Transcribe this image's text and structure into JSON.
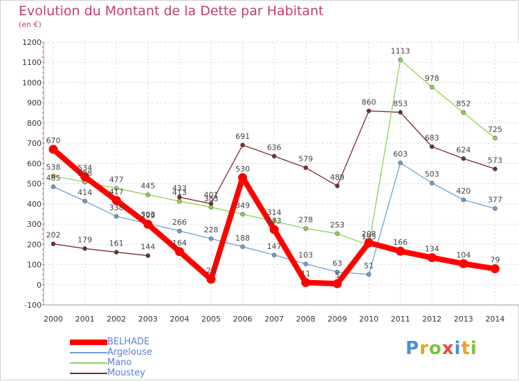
{
  "title": "Evolution du Montant de la Dette par Habitant",
  "unit": "(en €)",
  "logo": {
    "text": "Proxiti",
    "colors": [
      "#4a8fd6",
      "#f0a020",
      "#7cc242",
      "#e84a3a",
      "#4a8fd6",
      "#f0a020",
      "#7cc242"
    ]
  },
  "chart_data": {
    "type": "line",
    "x": [
      "2000",
      "2001",
      "2002",
      "2003",
      "2004",
      "2005",
      "2006",
      "2007",
      "2008",
      "2009",
      "2010",
      "2011",
      "2012",
      "2013",
      "2014"
    ],
    "ylim": [
      -100,
      1200
    ],
    "yticks": [
      -100,
      0,
      100,
      200,
      300,
      400,
      500,
      600,
      700,
      800,
      900,
      1000,
      1100,
      1200
    ],
    "grid": true,
    "legend_position": "bottom-left",
    "series": [
      {
        "name": "BELHADE",
        "color": "#ff0000",
        "values": [
          670,
          534,
          417,
          299,
          164,
          27,
          530,
          273,
          11,
          5,
          208,
          166,
          134,
          104,
          79
        ],
        "labels": [
          "670",
          "534",
          "417",
          "299",
          "164",
          "27",
          "530",
          "273",
          "11",
          "5",
          "208",
          "166",
          "134",
          "104",
          "79"
        ]
      },
      {
        "name": "Argelouse",
        "color": "#6fa0d0",
        "values": [
          485,
          414,
          338,
          303,
          266,
          228,
          188,
          147,
          103,
          63,
          51,
          603,
          503,
          420,
          377
        ],
        "labels": [
          "485",
          "414",
          "338",
          "303",
          "266",
          "228",
          "188",
          "147",
          "103",
          "63",
          "51",
          "603",
          "503",
          "420",
          "377"
        ]
      },
      {
        "name": "Mano",
        "color": "#8ed14f",
        "values": [
          538,
          508,
          477,
          445,
          413,
          383,
          349,
          314,
          278,
          253,
          195,
          1113,
          978,
          852,
          725
        ],
        "labels": [
          "538",
          "508",
          "477",
          "445",
          "413",
          "383",
          "349",
          "314",
          "278",
          "253",
          "195",
          "1113",
          "978",
          "852",
          "725"
        ]
      },
      {
        "name": "Moustey",
        "color": "#7a2a2a",
        "values": [
          202,
          179,
          161,
          144,
          433,
          401,
          691,
          636,
          579,
          489,
          860,
          853,
          683,
          624,
          573
        ],
        "labels": [
          "202",
          "179",
          "161",
          "144",
          "433",
          "401",
          "691",
          "636",
          "579",
          "489",
          "860",
          "853",
          "683",
          "624",
          "573"
        ]
      }
    ]
  }
}
